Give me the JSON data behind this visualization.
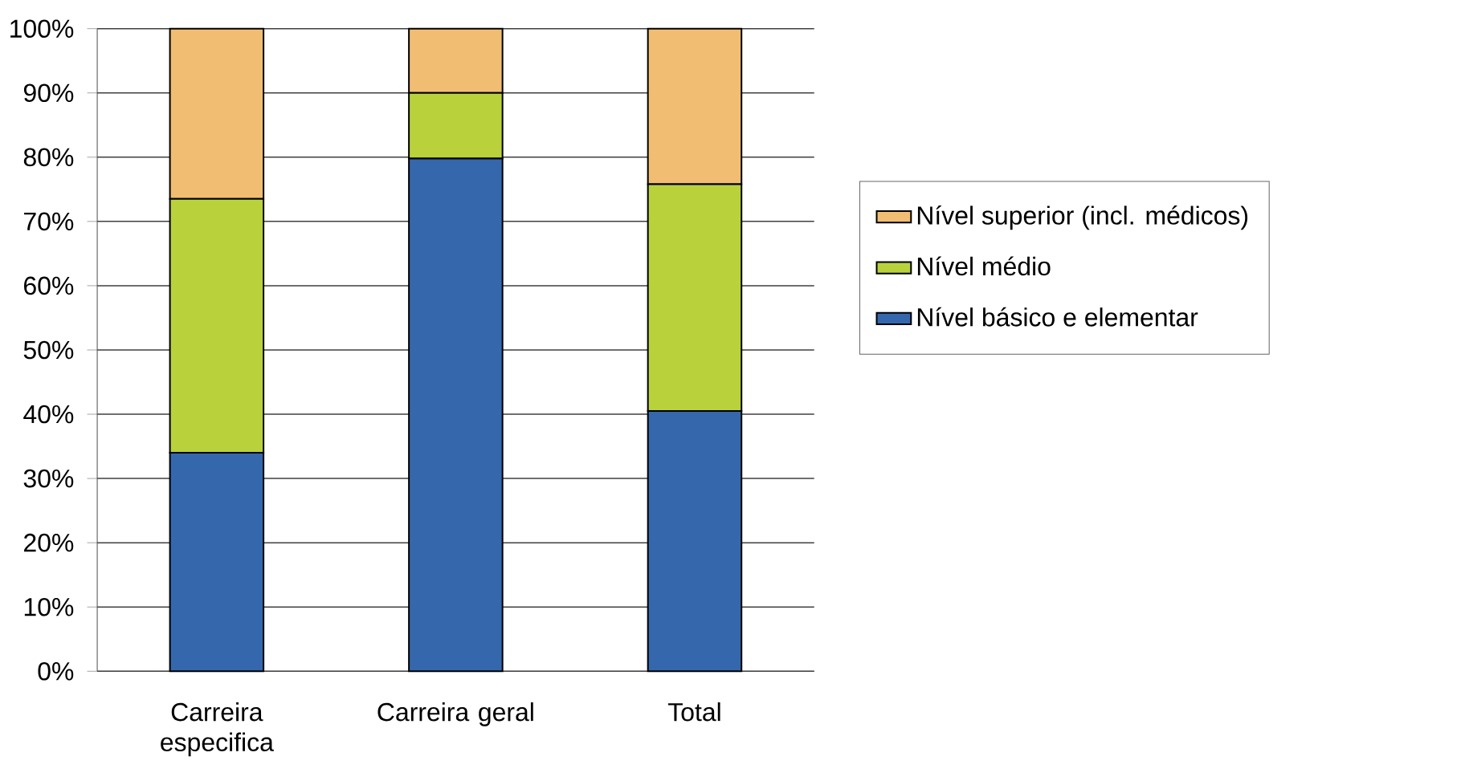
{
  "chart_data": {
    "type": "bar",
    "stacked": true,
    "categories": [
      "Carreira especifica",
      "Carreira geral",
      "Total"
    ],
    "series": [
      {
        "name": "Nível básico e elementar",
        "color": "#3567ad",
        "values": [
          34.0,
          79.8,
          40.5
        ]
      },
      {
        "name": "Nível médio",
        "color": "#b9d23c",
        "values": [
          39.5,
          10.2,
          35.3
        ]
      },
      {
        "name": "Nível superior (incl. médicos)",
        "color": "#f0bd72",
        "values": [
          26.5,
          10.0,
          24.2
        ]
      }
    ],
    "ylim": [
      0,
      100
    ],
    "yticks": [
      {
        "value": 0,
        "label": "0%"
      },
      {
        "value": 10,
        "label": "10%"
      },
      {
        "value": 20,
        "label": "20%"
      },
      {
        "value": 30,
        "label": "30%"
      },
      {
        "value": 40,
        "label": "40%"
      },
      {
        "value": 50,
        "label": "50%"
      },
      {
        "value": 60,
        "label": "60%"
      },
      {
        "value": 70,
        "label": "70%"
      },
      {
        "value": 80,
        "label": "80%"
      },
      {
        "value": 90,
        "label": "90%"
      },
      {
        "value": 100,
        "label": "100%"
      }
    ],
    "grid": "y",
    "legend": "right"
  }
}
